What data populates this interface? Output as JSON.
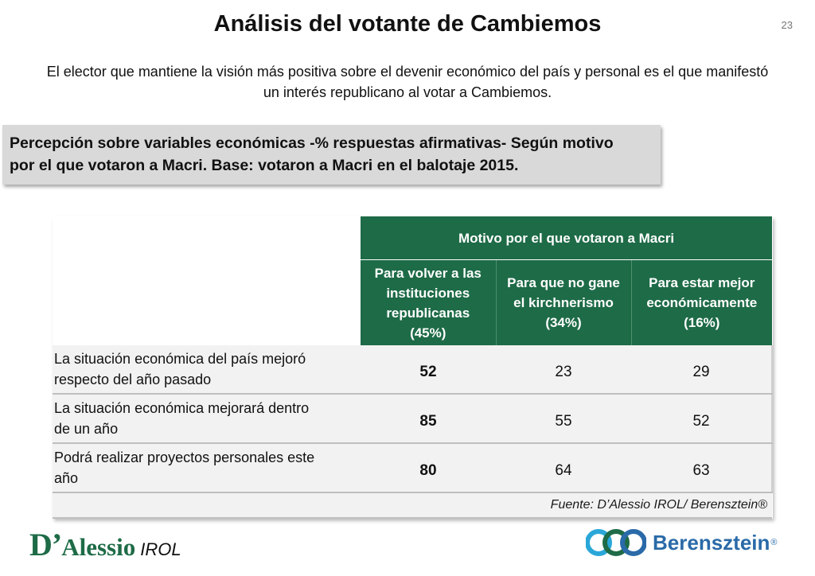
{
  "header": {
    "title": "Análisis del votante de Cambiemos",
    "page_number": "23",
    "subtitle_line1": "El elector que mantiene la visión más positiva sobre el devenir económico del país y personal es el que manifestó",
    "subtitle_line2": "un interés republicano al votar a Cambiemos."
  },
  "box": {
    "line1": "Percepción sobre variables económicas -% respuestas afirmativas- Según motivo",
    "line2": "por el que votaron a Macri. Base: votaron a Macri en el balotaje 2015."
  },
  "table": {
    "group_header": "Motivo por el que votaron a Macri",
    "columns": [
      [
        "Para volver a las",
        "instituciones",
        "republicanas",
        "(45%)"
      ],
      [
        "Para que no gane",
        "el kirchnerismo",
        "(34%)"
      ],
      [
        "Para estar mejor",
        "económicamente",
        "(16%)"
      ]
    ],
    "rows": [
      {
        "label1": "La situación económica del país mejoró",
        "label2": "respecto del año pasado",
        "values": [
          "52",
          "23",
          "29"
        ]
      },
      {
        "label1": "La situación económica mejorará dentro",
        "label2": "de un año",
        "values": [
          "85",
          "55",
          "52"
        ]
      },
      {
        "label1": "Podrá realizar proyectos personales este",
        "label2": "año",
        "values": [
          "80",
          "64",
          "63"
        ]
      }
    ],
    "source": "Fuente: D’Alessio IROL/ Berensztein®"
  },
  "logos": {
    "left_d": "D’",
    "left_rest": "Alessio",
    "left_irol": "IROL",
    "right_word": "Berensztein",
    "right_reg": "®"
  },
  "colors": {
    "header_green": "#1e6b47",
    "berensztein_blue": "#2a6aa8"
  }
}
